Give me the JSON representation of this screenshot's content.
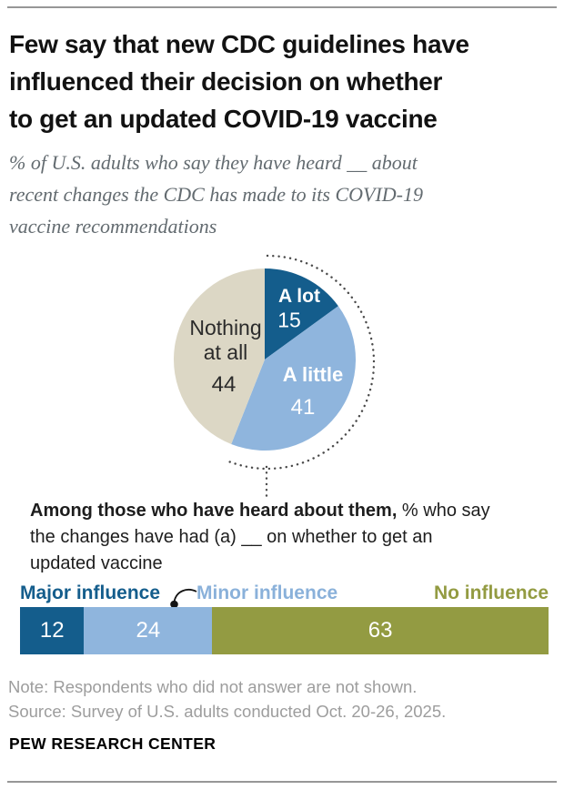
{
  "page": {
    "background": "#ffffff",
    "rule_color": "#979797"
  },
  "header": {
    "title_lines": [
      "Few say that new CDC guidelines have",
      "influenced their decision on whether",
      "to get an updated COVID-19 vaccine"
    ],
    "subtitle_lines": [
      "% of U.S. adults who say they have heard __ about",
      "recent changes the CDC has made to its COVID-19",
      "vaccine recommendations"
    ]
  },
  "chart_data": [
    {
      "type": "pie",
      "question": "% of U.S. adults who say they have heard __ about recent changes the CDC has made to its COVID-19 vaccine recommendations",
      "start_angle_deg": 0,
      "direction": "clockwise",
      "slices": [
        {
          "label": "A lot",
          "value": 15,
          "color": "#145d8c",
          "label_color": "#ffffff"
        },
        {
          "label": "A little",
          "value": 41,
          "color": "#8fb5dd",
          "label_color": "#ffffff"
        },
        {
          "label": "Nothing at all",
          "value": 44,
          "color": "#dcd7c5",
          "label_color": "#2b2b2b",
          "label_lines": [
            "Nothing",
            "at all"
          ]
        }
      ],
      "annotation_arc": {
        "covers_slices": [
          "A lot",
          "A little"
        ],
        "style": "dotted",
        "color": "#4a4a4a"
      }
    },
    {
      "type": "bar",
      "subtype": "horizontal-stacked",
      "question": "Among those who have heard about them, % who say the changes have had (a) __ on whether to get an updated vaccine",
      "categories": [
        "Major influence",
        "Minor influence",
        "No influence"
      ],
      "values": [
        12,
        24,
        63
      ],
      "colors": [
        "#145d8c",
        "#8fb5dd",
        "#939b42"
      ],
      "value_color": "#ffffff",
      "label_colors": [
        "#145d8c",
        "#8ab1da",
        "#939b42"
      ]
    }
  ],
  "bar_section": {
    "intro_bold": "Among those who have heard about them,",
    "intro_rest_line1": " % who say",
    "intro_line2": "the changes have had (a) __ on whether to get an",
    "intro_line3": "updated vaccine"
  },
  "footer": {
    "note": "Note: Respondents who did not answer are not shown.",
    "source": "Source: Survey of U.S. adults conducted Oct. 20-26, 2025.",
    "brand": "PEW RESEARCH CENTER"
  }
}
